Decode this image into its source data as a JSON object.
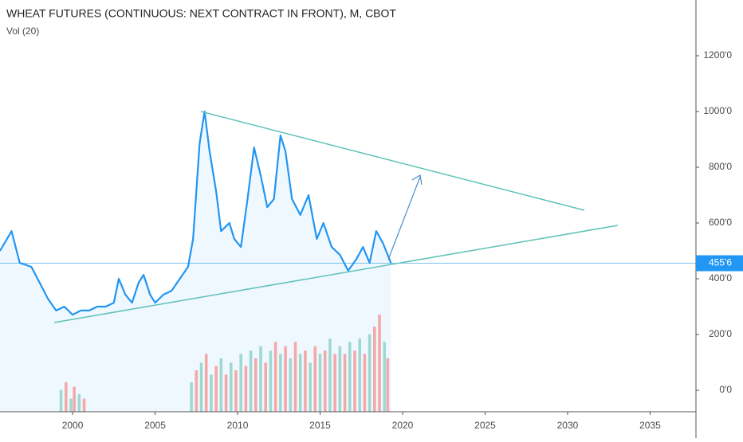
{
  "chart_data": {
    "type": "line",
    "title": "WHEAT FUTURES (CONTINUOUS: NEXT CONTRACT IN FRONT), M, CBOT",
    "subtitle": "Vol (20)",
    "color": "#2196f3",
    "x": [
      1995.6,
      1996.3,
      1996.8,
      1997.5,
      1998.0,
      1998.5,
      1999.0,
      1999.5,
      2000.0,
      2000.5,
      2001.0,
      2001.5,
      2002.0,
      2002.5,
      2002.8,
      2003.2,
      2003.6,
      2004.0,
      2004.3,
      2004.7,
      2005.0,
      2005.5,
      2006.0,
      2006.5,
      2007.0,
      2007.3,
      2007.7,
      2008.0,
      2008.3,
      2008.7,
      2009.0,
      2009.5,
      2009.8,
      2010.2,
      2010.6,
      2011.0,
      2011.4,
      2011.8,
      2012.2,
      2012.6,
      2012.9,
      2013.3,
      2013.8,
      2014.3,
      2014.8,
      2015.2,
      2015.7,
      2016.2,
      2016.7,
      2017.2,
      2017.6,
      2018.0,
      2018.4,
      2018.8,
      2019.2,
      2019.3
    ],
    "values": [
      500,
      571,
      457,
      443,
      386,
      329,
      286,
      300,
      271,
      286,
      286,
      300,
      300,
      314,
      400,
      343,
      314,
      386,
      414,
      343,
      314,
      343,
      357,
      400,
      443,
      543,
      886,
      1000,
      857,
      714,
      571,
      600,
      543,
      514,
      686,
      871,
      771,
      657,
      686,
      914,
      857,
      686,
      629,
      700,
      543,
      600,
      514,
      486,
      429,
      471,
      514,
      457,
      571,
      529,
      471,
      455.75
    ],
    "last_price": {
      "value": 455.75,
      "label": "455'6"
    },
    "xlim": [
      1995.6,
      2037.78
    ],
    "xticks": [
      2000,
      2005,
      2010,
      2015,
      2020,
      2025,
      2030,
      2035
    ],
    "ylim": [
      -77,
      1400
    ],
    "yticks": [
      {
        "value": 0,
        "label": "0'0"
      },
      {
        "value": 200,
        "label": "200'0"
      },
      {
        "value": 400,
        "label": "400'0"
      },
      {
        "value": 600,
        "label": "600'0"
      },
      {
        "value": 800,
        "label": "800'0"
      },
      {
        "value": 1000,
        "label": "1000'0"
      },
      {
        "value": 1200,
        "label": "1200'0"
      }
    ],
    "grid": false,
    "volume": {
      "axis": "y2",
      "x": [
        1999.3,
        1999.6,
        1999.9,
        2000.1,
        2000.4,
        2000.7,
        2007.2,
        2007.5,
        2007.8,
        2008.1,
        2008.4,
        2008.7,
        2009.0,
        2009.3,
        2009.6,
        2009.9,
        2010.2,
        2010.5,
        2010.8,
        2011.1,
        2011.4,
        2011.7,
        2012.0,
        2012.3,
        2012.6,
        2012.9,
        2013.2,
        2013.5,
        2013.8,
        2014.1,
        2014.4,
        2014.7,
        2015.0,
        2015.3,
        2015.6,
        2015.9,
        2016.2,
        2016.5,
        2016.8,
        2017.1,
        2017.4,
        2017.7,
        2018.0,
        2018.3,
        2018.6,
        2018.9,
        2019.1
      ],
      "values": [
        20,
        27,
        12,
        23,
        16,
        12,
        27,
        38,
        45,
        53,
        34,
        42,
        49,
        34,
        45,
        38,
        53,
        42,
        56,
        49,
        60,
        45,
        56,
        64,
        53,
        60,
        49,
        64,
        53,
        56,
        45,
        60,
        53,
        56,
        67,
        53,
        60,
        53,
        64,
        56,
        67,
        53,
        71,
        78,
        89,
        64,
        49
      ],
      "colors": [
        "#9fd8d2",
        "#f4a9a9",
        "#9fd8d2",
        "#f4a9a9",
        "#9fd8d2",
        "#f4a9a9",
        "#9fd8d2",
        "#f4a9a9",
        "#9fd8d2",
        "#f4a9a9",
        "#9fd8d2",
        "#f4a9a9",
        "#9fd8d2",
        "#f4a9a9",
        "#9fd8d2",
        "#f4a9a9",
        "#9fd8d2",
        "#f4a9a9",
        "#9fd8d2",
        "#f4a9a9",
        "#9fd8d2",
        "#f4a9a9",
        "#9fd8d2",
        "#f4a9a9",
        "#9fd8d2",
        "#f4a9a9",
        "#9fd8d2",
        "#f4a9a9",
        "#9fd8d2",
        "#f4a9a9",
        "#9fd8d2",
        "#f4a9a9",
        "#9fd8d2",
        "#f4a9a9",
        "#9fd8d2",
        "#f4a9a9",
        "#9fd8d2",
        "#f4a9a9",
        "#9fd8d2",
        "#f4a9a9",
        "#9fd8d2",
        "#f4a9a9",
        "#9fd8d2",
        "#f4a9a9",
        "#f4a9a9",
        "#9fd8d2",
        "#f4a9a9"
      ]
    },
    "y2lim": [
      0,
      100
    ]
  }
}
